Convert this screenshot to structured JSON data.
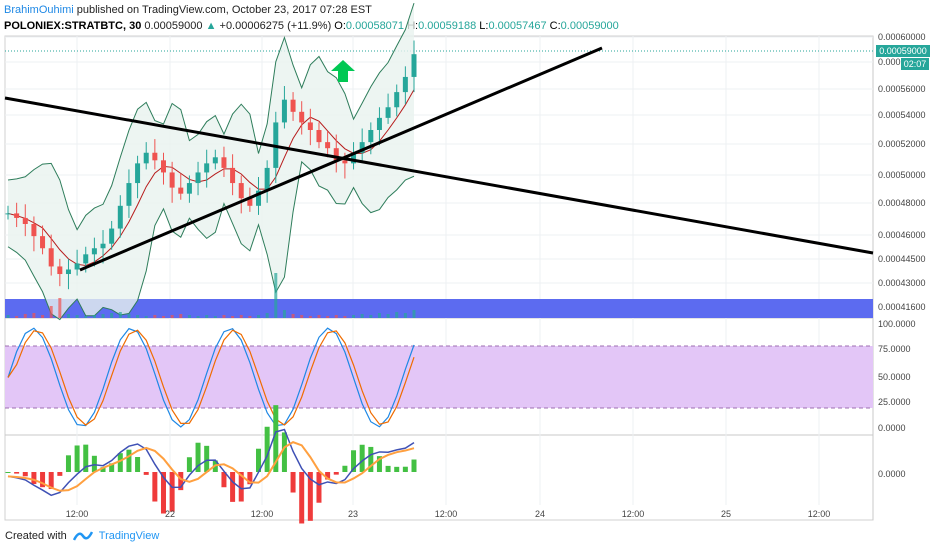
{
  "header": {
    "author": "BrahimOuhimi",
    "published_text": "published on TradingView.com, October 23, 2017 07:28 EST",
    "symbol": "POLONIEX:STRATBTC, 30",
    "last": "0.00059000",
    "change": "+0.00006275 (+11.9%)",
    "o_label": "O:",
    "o_value": "0.00058071",
    "h_label": "H:",
    "h_value": "0.00059188",
    "l_label": "L:",
    "l_value": "0.00057467",
    "c_label": "C:",
    "c_value": "0.00059000"
  },
  "price_axis": {
    "labels": [
      "0.00060000",
      "0.00058000",
      "0.00056000",
      "0.00054000",
      "0.00052000",
      "0.00050000",
      "0.00048000",
      "0.00046000",
      "0.00044500",
      "0.00043000",
      "0.00041600"
    ],
    "current_price_label": "0.00059000",
    "timer_label": "02:07"
  },
  "stoch_axis": {
    "labels": [
      "100.0000",
      "75.0000",
      "50.0000",
      "25.0000",
      "0.0000"
    ]
  },
  "macd_axis": {
    "labels": [
      "0.0000"
    ]
  },
  "time_axis": {
    "labels": [
      "12:00",
      "22",
      "12:00",
      "23",
      "12:00",
      "24",
      "12:00",
      "25",
      "12:00"
    ]
  },
  "footer": {
    "created_with": "Created with",
    "brand": "TradingView"
  },
  "colors": {
    "up": "#26a69a",
    "down": "#ef5350",
    "band": "#2e7d5b",
    "midband": "#b71c1c",
    "volume_band": "#5c6bf0",
    "stoch_fill": "#e3c6f7",
    "stoch_k": "#1e88e5",
    "stoch_d": "#ef6c00",
    "macd_line": "#3f51b5",
    "signal_line": "#ffa040",
    "trendline": "#000000",
    "arrow": "#00c853"
  },
  "icons": {
    "arrow": "arrow-up-icon",
    "logo": "tradingview-logo-icon"
  },
  "chart_data": {
    "type": "candlestick",
    "price_ylim": [
      0.000416,
      0.000602
    ],
    "stoch_levels": [
      80,
      20
    ],
    "series": [
      {
        "name": "close_approx",
        "values": [
          0.000485,
          0.000482,
          0.000478,
          0.00047,
          0.000462,
          0.00045,
          0.000445,
          0.000448,
          0.000452,
          0.000458,
          0.000462,
          0.000465,
          0.000475,
          0.00049,
          0.000505,
          0.000518,
          0.000525,
          0.00052,
          0.000512,
          0.000502,
          0.000498,
          0.000505,
          0.000512,
          0.000518,
          0.000522,
          0.000515,
          0.000505,
          0.000495,
          0.00049,
          0.0005,
          0.000515,
          0.000545,
          0.00056,
          0.000552,
          0.000545,
          0.00054,
          0.000532,
          0.000528,
          0.00052,
          0.000518,
          0.000525,
          0.000532,
          0.00054,
          0.000548,
          0.000555,
          0.000565,
          0.000575,
          0.00059
        ]
      }
    ]
  }
}
